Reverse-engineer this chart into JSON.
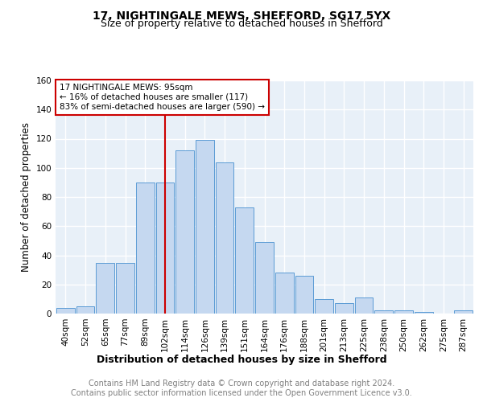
{
  "title1": "17, NIGHTINGALE MEWS, SHEFFORD, SG17 5YX",
  "title2": "Size of property relative to detached houses in Shefford",
  "xlabel": "Distribution of detached houses by size in Shefford",
  "ylabel": "Number of detached properties",
  "footer1": "Contains HM Land Registry data © Crown copyright and database right 2024.",
  "footer2": "Contains public sector information licensed under the Open Government Licence v3.0.",
  "bar_labels": [
    "40sqm",
    "52sqm",
    "65sqm",
    "77sqm",
    "89sqm",
    "102sqm",
    "114sqm",
    "126sqm",
    "139sqm",
    "151sqm",
    "164sqm",
    "176sqm",
    "188sqm",
    "201sqm",
    "213sqm",
    "225sqm",
    "238sqm",
    "250sqm",
    "262sqm",
    "275sqm",
    "287sqm"
  ],
  "bar_values": [
    4,
    5,
    35,
    35,
    90,
    90,
    112,
    119,
    104,
    73,
    49,
    28,
    26,
    10,
    7,
    11,
    2,
    2,
    1,
    0,
    2
  ],
  "bar_color": "#c5d8f0",
  "bar_edge_color": "#5b9bd5",
  "vline_x": 5.0,
  "vline_color": "#cc0000",
  "annotation_text": "17 NIGHTINGALE MEWS: 95sqm\n← 16% of detached houses are smaller (117)\n83% of semi-detached houses are larger (590) →",
  "annotation_box_color": "#ffffff",
  "annotation_box_edge": "#cc0000",
  "ylim": [
    0,
    160
  ],
  "yticks": [
    0,
    20,
    40,
    60,
    80,
    100,
    120,
    140,
    160
  ],
  "plot_bg_color": "#e8f0f8",
  "grid_color": "#ffffff",
  "title1_fontsize": 10,
  "title2_fontsize": 9,
  "xlabel_fontsize": 9,
  "ylabel_fontsize": 8.5,
  "tick_fontsize": 7.5,
  "annotation_fontsize": 7.5,
  "footer_fontsize": 7,
  "footer_color": "#808080"
}
